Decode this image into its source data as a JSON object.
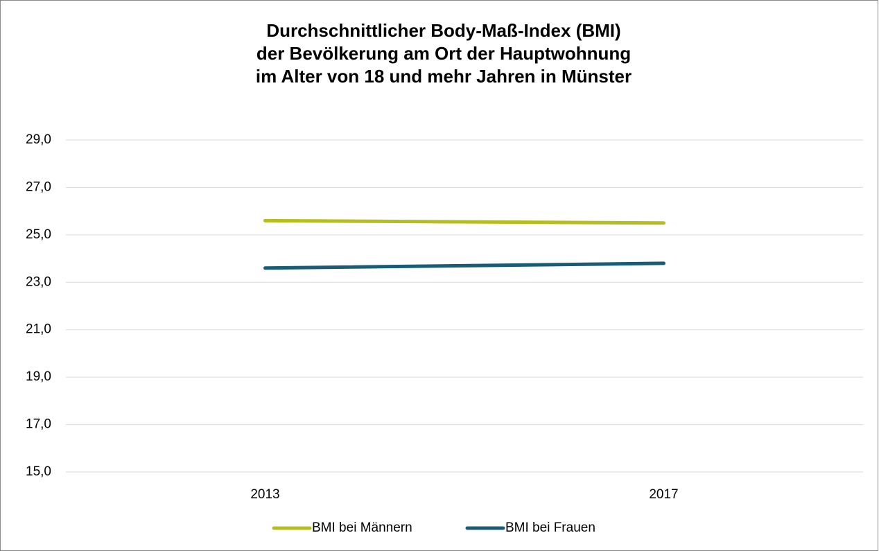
{
  "chart_data": {
    "type": "line",
    "title": [
      "Durchschnittlicher Body-Maß-Index (BMI)",
      "der Bevölkerung am Ort der Hauptwohnung",
      "im Alter von 18 und mehr Jahren in Münster"
    ],
    "categories": [
      "2013",
      "2017"
    ],
    "series": [
      {
        "name": "BMI bei Männern",
        "color": "#b5bd1f",
        "values": [
          25.6,
          25.5
        ]
      },
      {
        "name": "BMI bei Frauen",
        "color": "#1a5c78",
        "values": [
          23.6,
          23.8
        ]
      }
    ],
    "ylim": [
      15,
      29
    ],
    "yticks": [
      {
        "value": 15,
        "label": "15,0"
      },
      {
        "value": 17,
        "label": "17,0"
      },
      {
        "value": 19,
        "label": "19,0"
      },
      {
        "value": 21,
        "label": "21,0"
      },
      {
        "value": 23,
        "label": "23,0"
      },
      {
        "value": 25,
        "label": "25,0"
      },
      {
        "value": 27,
        "label": "27,0"
      },
      {
        "value": 29,
        "label": "29,0"
      }
    ],
    "grid": true,
    "legend": "bottom"
  }
}
